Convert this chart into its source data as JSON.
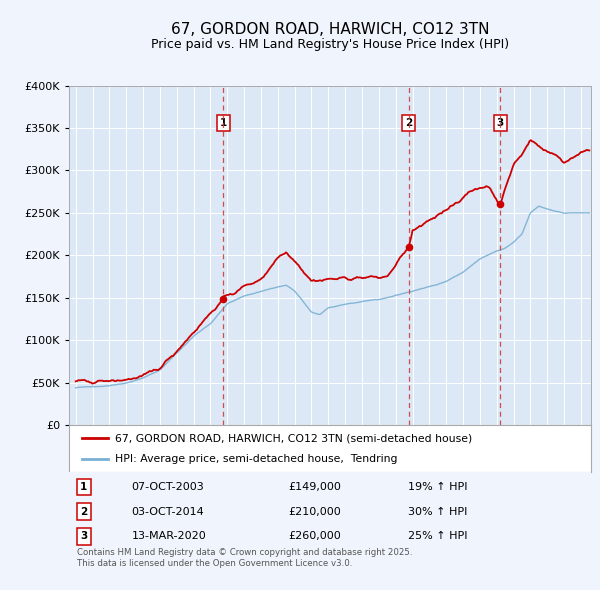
{
  "title": "67, GORDON ROAD, HARWICH, CO12 3TN",
  "subtitle": "Price paid vs. HM Land Registry's House Price Index (HPI)",
  "title_fontsize": 11,
  "subtitle_fontsize": 9,
  "background_color": "#f0f4fc",
  "plot_bg_color": "#dce8f5",
  "grid_color": "#ffffff",
  "ylim": [
    0,
    400000
  ],
  "yticks": [
    0,
    50000,
    100000,
    150000,
    200000,
    250000,
    300000,
    350000,
    400000
  ],
  "legend_entries": [
    "67, GORDON ROAD, HARWICH, CO12 3TN (semi-detached house)",
    "HPI: Average price, semi-detached house,  Tendring"
  ],
  "sale_color": "#cc0000",
  "hpi_color": "#7ab0d4",
  "vline_color": "#cc3333",
  "transaction_lines": [
    {
      "year": 2003.77,
      "label": "1"
    },
    {
      "year": 2014.77,
      "label": "2"
    },
    {
      "year": 2020.2,
      "label": "3"
    }
  ],
  "transaction_markers": [
    {
      "year": 2003.77,
      "value": 149000
    },
    {
      "year": 2014.77,
      "value": 210000
    },
    {
      "year": 2020.2,
      "value": 260000
    }
  ],
  "table_rows": [
    {
      "num": "1",
      "date": "07-OCT-2003",
      "price": "£149,000",
      "change": "19% ↑ HPI"
    },
    {
      "num": "2",
      "date": "03-OCT-2014",
      "price": "£210,000",
      "change": "30% ↑ HPI"
    },
    {
      "num": "3",
      "date": "13-MAR-2020",
      "price": "£260,000",
      "change": "25% ↑ HPI"
    }
  ],
  "footnote1": "Contains HM Land Registry data © Crown copyright and database right 2025.",
  "footnote2": "This data is licensed under the Open Government Licence v3.0."
}
